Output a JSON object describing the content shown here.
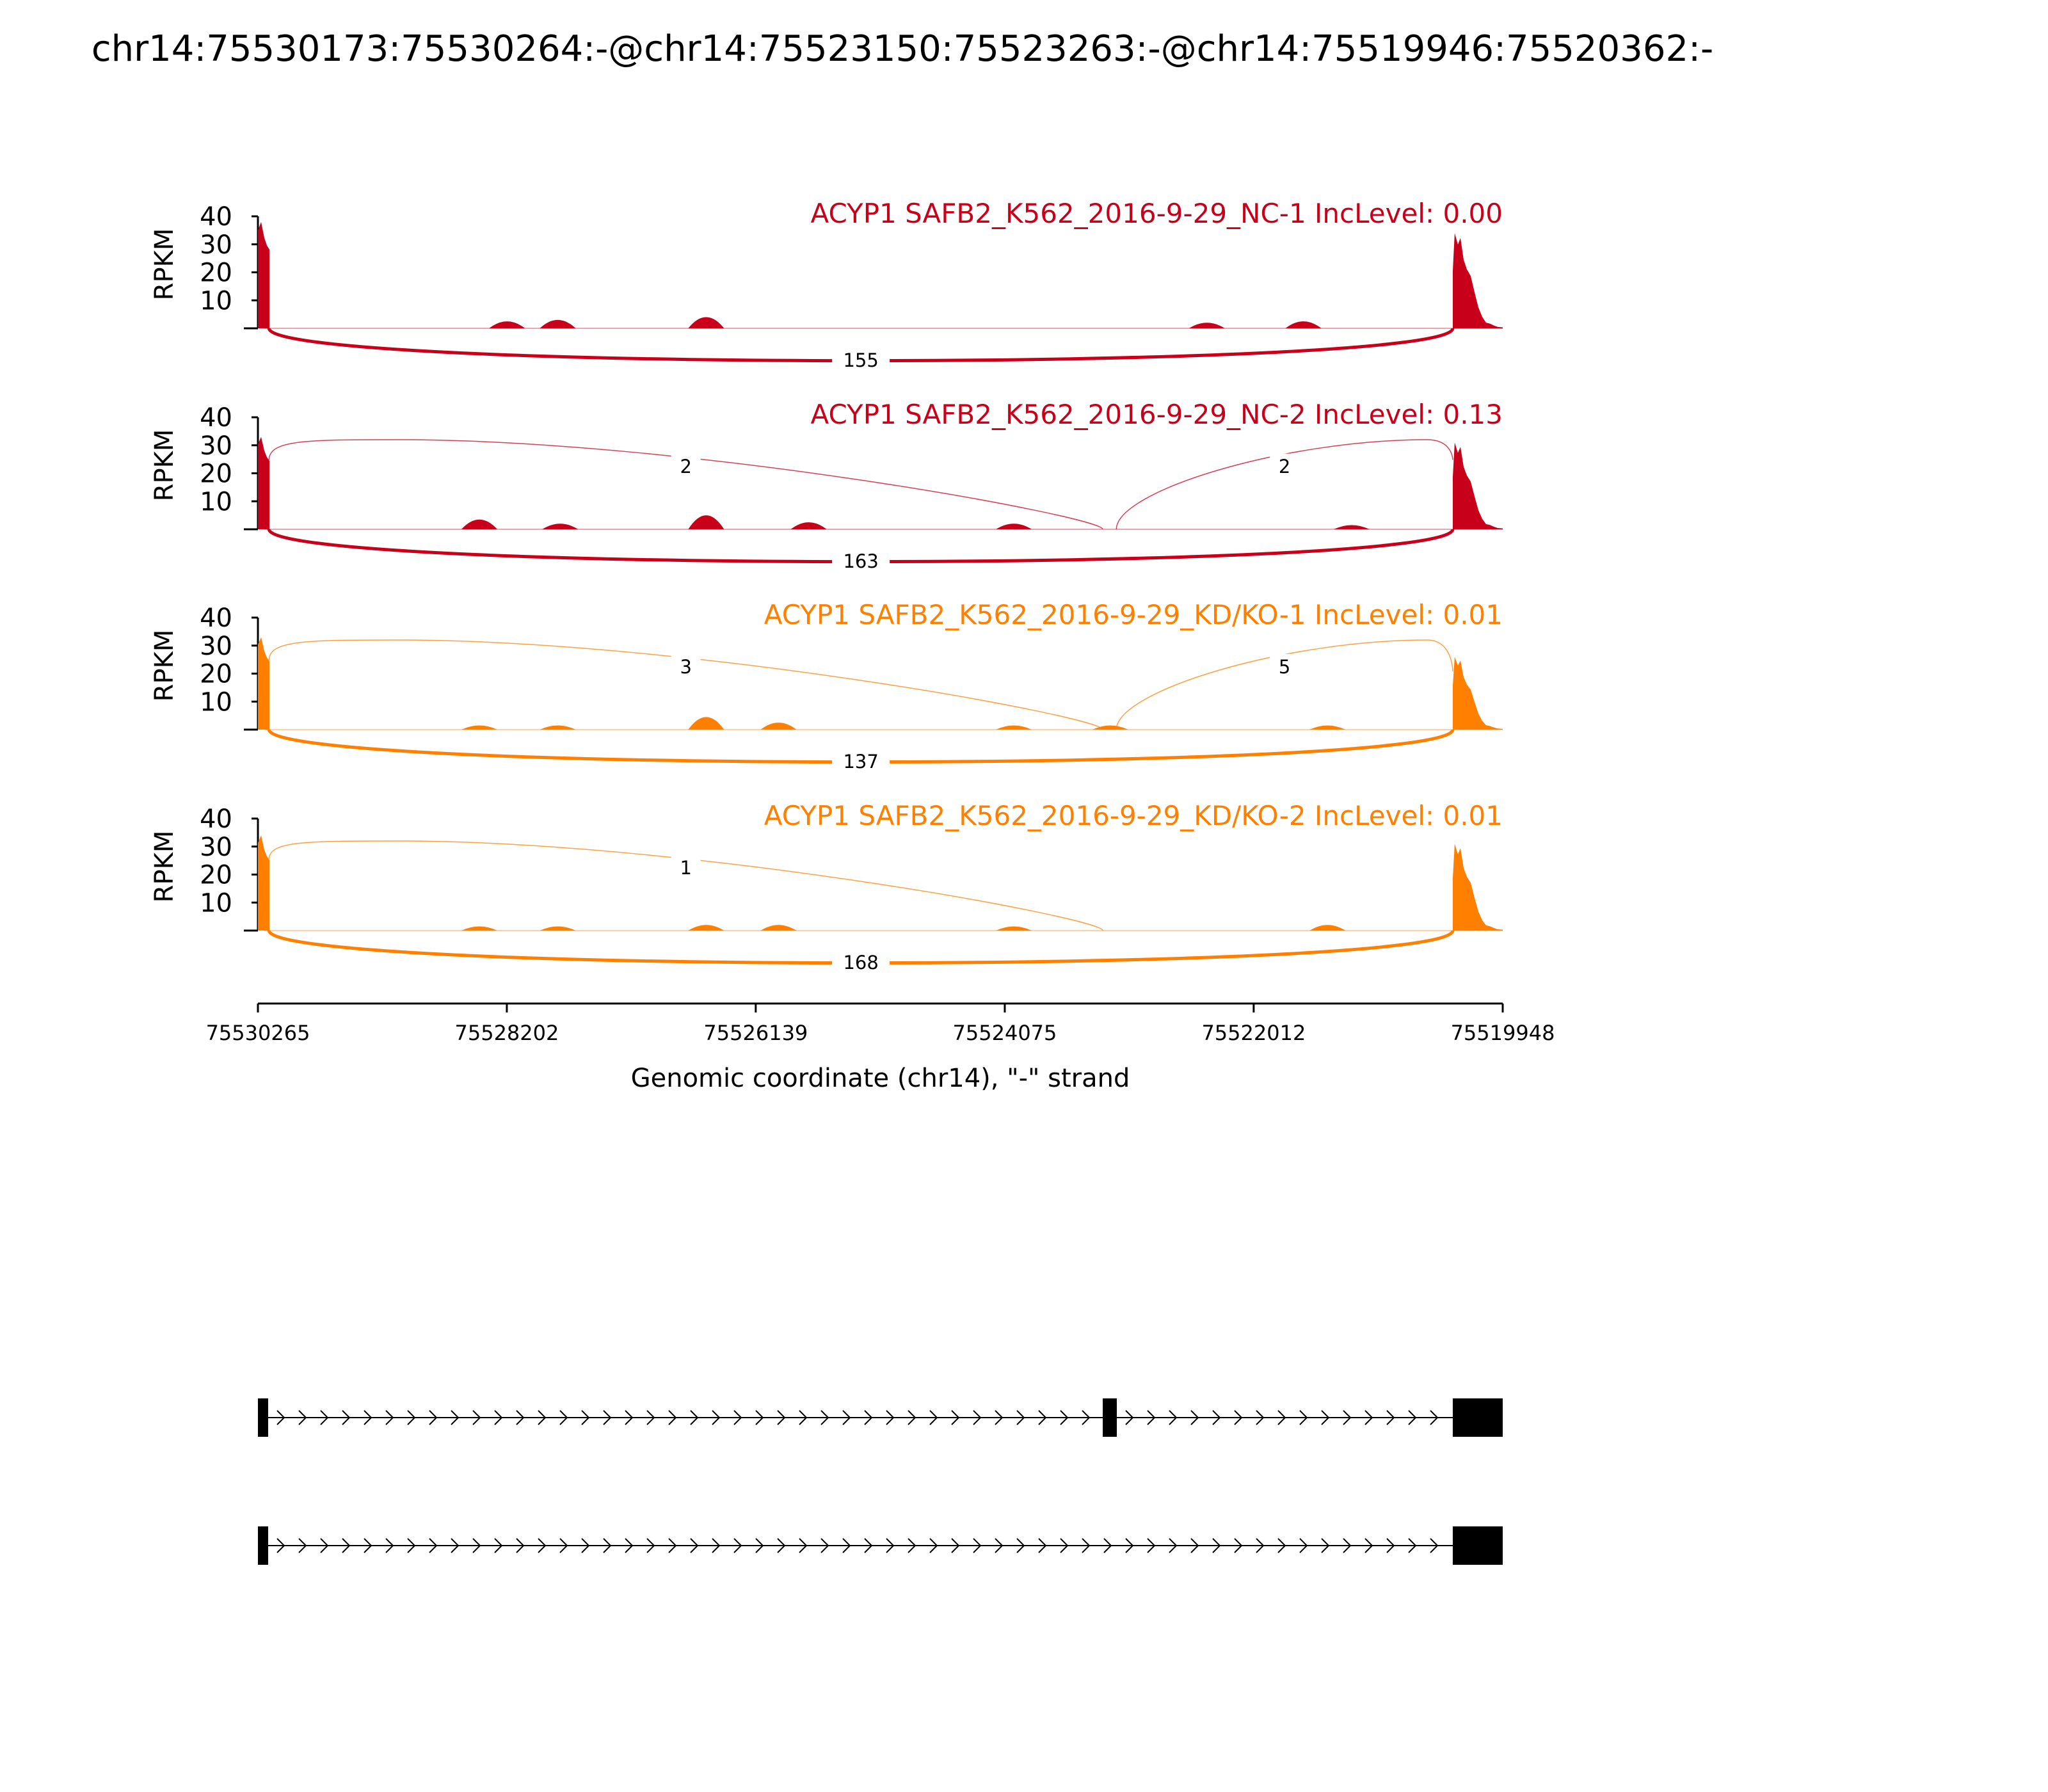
{
  "chart_data": {
    "type": "area",
    "title": "chr14:75530173:75530264:-@chr14:75523150:75523263:-@chr14:75519946:75520362:-",
    "xlabel": "Genomic coordinate (chr14), \"-\" strand",
    "ylabel": "RPKM",
    "x_ticks": [
      "75530265",
      "75528202",
      "75526139",
      "75524075",
      "75522012",
      "75519948"
    ],
    "x_range": [
      75530265,
      75519948
    ],
    "y_ticks": [
      10,
      20,
      30,
      40
    ],
    "ylim": [
      0,
      40
    ],
    "grid": false,
    "exons": [
      {
        "name": "upstream exon",
        "start": 75530264,
        "end": 75530173
      },
      {
        "name": "skipped exon",
        "start": 75523263,
        "end": 75523150
      },
      {
        "name": "downstream exon",
        "start": 75520362,
        "end": 75519946
      }
    ],
    "series": [
      {
        "name": "ACYP1 SAFB2_K562_2016-9-29_NC-1 IncLevel: 0.00",
        "color": "#c8001a",
        "upstream_peak": 38,
        "downstream_peak": 34,
        "background_bumps": [
          [
            75528200,
            2.5
          ],
          [
            75527780,
            3
          ],
          [
            75526550,
            4
          ],
          [
            75522400,
            2
          ],
          [
            75521600,
            2.5
          ]
        ],
        "junctions": [
          {
            "from": "upstream exon",
            "to": "downstream exon",
            "count": 155
          }
        ]
      },
      {
        "name": "ACYP1 SAFB2_K562_2016-9-29_NC-2 IncLevel: 0.13",
        "color": "#c8001a",
        "upstream_peak": 33,
        "downstream_peak": 31,
        "background_bumps": [
          [
            75528430,
            3.5
          ],
          [
            75527760,
            2
          ],
          [
            75526550,
            5
          ],
          [
            75525700,
            2.5
          ],
          [
            75524000,
            2
          ],
          [
            75521200,
            1.5
          ]
        ],
        "junctions": [
          {
            "from": "upstream exon",
            "to": "skipped exon",
            "count": 2
          },
          {
            "from": "skipped exon",
            "to": "downstream exon",
            "count": 2
          },
          {
            "from": "upstream exon",
            "to": "downstream exon",
            "count": 163
          }
        ]
      },
      {
        "name": "ACYP1 SAFB2_K562_2016-9-29_KD/KO-1 IncLevel: 0.01",
        "color": "#ff8000",
        "upstream_peak": 33,
        "downstream_peak": 26,
        "background_bumps": [
          [
            75528430,
            1.5
          ],
          [
            75527780,
            1.5
          ],
          [
            75526550,
            4.5
          ],
          [
            75525950,
            2.5
          ],
          [
            75524000,
            1.5
          ],
          [
            75523200,
            1.5
          ],
          [
            75521400,
            1.5
          ]
        ],
        "junctions": [
          {
            "from": "upstream exon",
            "to": "skipped exon",
            "count": 3
          },
          {
            "from": "skipped exon",
            "to": "downstream exon",
            "count": 5
          },
          {
            "from": "upstream exon",
            "to": "downstream exon",
            "count": 137
          }
        ]
      },
      {
        "name": "ACYP1 SAFB2_K562_2016-9-29_KD/KO-2 IncLevel: 0.01",
        "color": "#ff8000",
        "upstream_peak": 34,
        "downstream_peak": 31,
        "background_bumps": [
          [
            75528430,
            1.5
          ],
          [
            75527780,
            1.5
          ],
          [
            75526550,
            2
          ],
          [
            75525950,
            2
          ],
          [
            75524000,
            1.5
          ],
          [
            75521400,
            2
          ]
        ],
        "junctions": [
          {
            "from": "upstream exon",
            "to": "skipped exon",
            "count": 1
          },
          {
            "from": "upstream exon",
            "to": "downstream exon",
            "count": 168
          }
        ]
      }
    ],
    "isoforms": [
      {
        "exons": [
          "upstream exon",
          "skipped exon",
          "downstream exon"
        ]
      },
      {
        "exons": [
          "upstream exon",
          "downstream exon"
        ]
      }
    ]
  }
}
